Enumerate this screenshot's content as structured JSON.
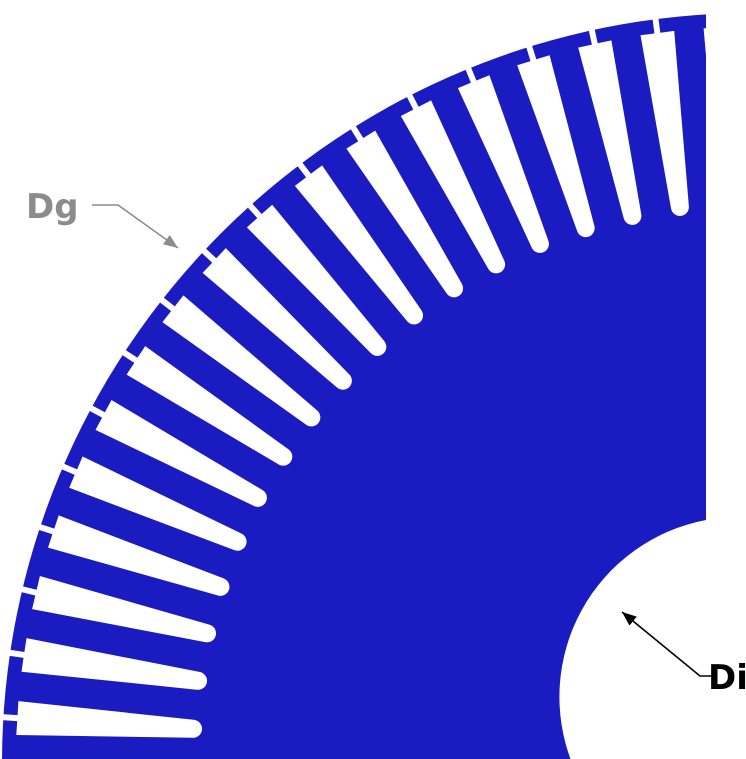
{
  "diagram": {
    "labels": {
      "outer_diameter": "Dg",
      "inner_diameter": "Di"
    },
    "slot_count": 19,
    "colors": {
      "lamination": "#1b1bc2",
      "background": "#ffffff",
      "dg_label": "#8c8c8c",
      "di_label": "#000000",
      "dg_leader": "#8c8c8c",
      "di_leader": "#000000"
    }
  }
}
